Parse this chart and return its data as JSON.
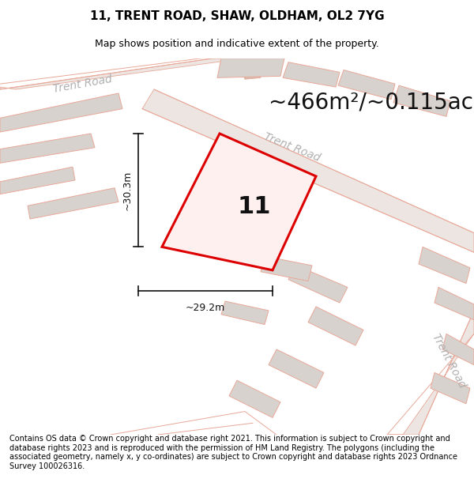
{
  "title": "11, TRENT ROAD, SHAW, OLDHAM, OL2 7YG",
  "subtitle": "Map shows position and indicative extent of the property.",
  "area_text": "~466m²/~0.115ac.",
  "number_label": "11",
  "dim_width": "~29.2m",
  "dim_height": "~30.3m",
  "footer": "Contains OS data © Crown copyright and database right 2021. This information is subject to Crown copyright and database rights 2023 and is reproduced with the permission of HM Land Registry. The polygons (including the associated geometry, namely x, y co-ordinates) are subject to Crown copyright and database rights 2023 Ordnance Survey 100026316.",
  "bg_color": "#f7f2f0",
  "road_fill": "#ede5e2",
  "road_line": "#e8a898",
  "building_fill": "#d8d2ce",
  "building_line": "#e8a898",
  "highlight_line": "#dd0000",
  "highlight_fill": "#fff0f0",
  "title_fontsize": 11,
  "subtitle_fontsize": 9,
  "area_fontsize": 20,
  "label_fontsize": 20,
  "footer_fontsize": 7,
  "road_label_color": "#b0b0b0",
  "dim_line_color": "#111111",
  "number_color": "#111111"
}
